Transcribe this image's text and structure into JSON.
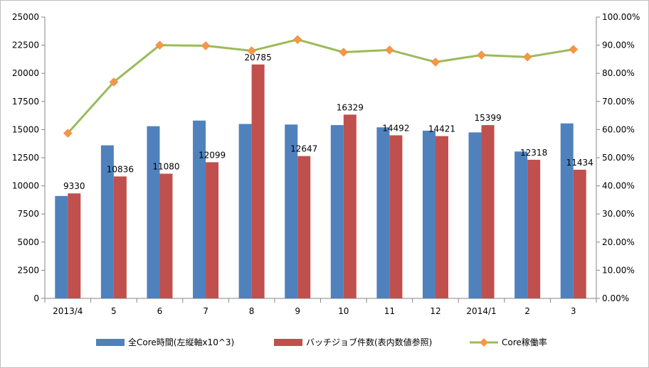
{
  "chart_data": {
    "type": "bar",
    "categories": [
      "2013/4",
      "5",
      "6",
      "7",
      "8",
      "9",
      "10",
      "11",
      "12",
      "2014/1",
      "2",
      "3"
    ],
    "series": [
      {
        "name": "全Core時間(左縦軸x10^3)",
        "type": "bar",
        "axis": "left",
        "color": "#4f81bd",
        "values": [
          9100,
          13600,
          15300,
          15800,
          15500,
          15450,
          15400,
          15200,
          14900,
          14750,
          13050,
          15550
        ]
      },
      {
        "name": "バッチジョブ件数(表内数値参照)",
        "type": "bar",
        "axis": "left",
        "color": "#c0504d",
        "values": [
          9330,
          10836,
          11080,
          12099,
          20785,
          12647,
          16329,
          14492,
          14421,
          15399,
          12318,
          11434
        ],
        "labels": [
          "9330",
          "10836",
          "11080",
          "12099",
          "20785",
          "12647",
          "16329",
          "14492",
          "14421",
          "15399",
          "12318",
          "11434"
        ]
      },
      {
        "name": "Core稼働率",
        "type": "line",
        "axis": "right",
        "color": "#9bbb59",
        "marker_color": "#f79646",
        "values": [
          0.587,
          0.769,
          0.9,
          0.898,
          0.88,
          0.92,
          0.875,
          0.883,
          0.84,
          0.865,
          0.858,
          0.885
        ]
      }
    ],
    "y_left": {
      "ylim": [
        0,
        25000
      ],
      "ticks": [
        "0",
        "2500",
        "5000",
        "7500",
        "10000",
        "12500",
        "15000",
        "17500",
        "20000",
        "22500",
        "25000"
      ]
    },
    "y_right": {
      "ylim": [
        0,
        1
      ],
      "ticks": [
        "0.00%",
        "10.00%",
        "20.00%",
        "30.00%",
        "40.00%",
        "50.00%",
        "60.00%",
        "70.00%",
        "80.00%",
        "90.00%",
        "100.00%"
      ]
    },
    "grid": false,
    "legend": "bottom",
    "legend_entries": [
      "全Core時間(左縦軸x10^3)",
      "バッチジョブ件数(表内数値参照)",
      "Core稼働率"
    ]
  }
}
